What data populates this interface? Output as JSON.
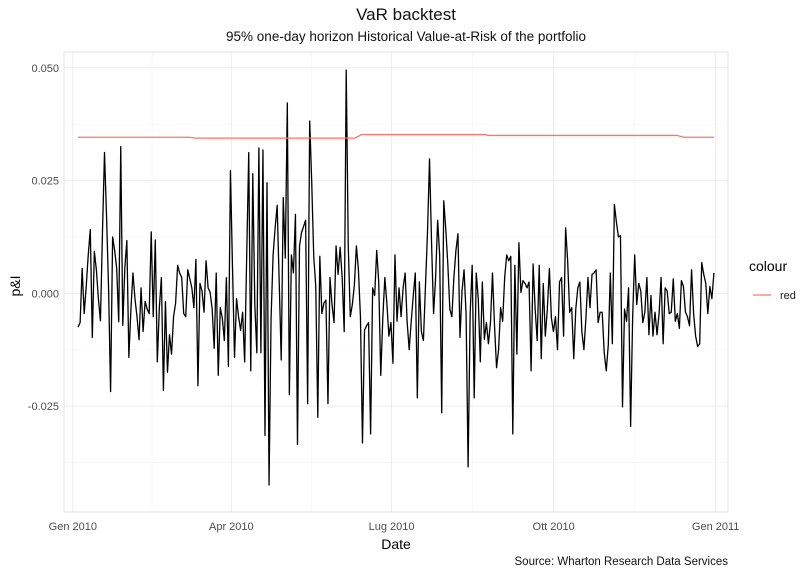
{
  "chart_data": {
    "type": "line",
    "title": "VaR backtest",
    "subtitle": "95% one-day horizon Historical Value-at-Risk of the portfolio",
    "caption": "Source: Wharton Research Data Services",
    "xlabel": "Date",
    "ylabel": "p&I",
    "x_ticks": [
      {
        "date": "2010-01-01",
        "label": "Gen 2010"
      },
      {
        "date": "2010-04-01",
        "label": "Apr 2010"
      },
      {
        "date": "2010-07-01",
        "label": "Lug 2010"
      },
      {
        "date": "2010-10-01",
        "label": "Ott 2010"
      },
      {
        "date": "2011-01-01",
        "label": "Gen 2011"
      }
    ],
    "y_ticks": [
      {
        "value": 0.05,
        "label": "0.050"
      },
      {
        "value": 0.025,
        "label": "0.025"
      },
      {
        "value": 0.0,
        "label": "0.000"
      },
      {
        "value": -0.025,
        "label": "-0.025"
      }
    ],
    "xlim": [
      "2009-12-27",
      "2011-01-08"
    ],
    "ylim": [
      -0.0485,
      0.0535
    ],
    "grid": true,
    "legend": {
      "title": "colour",
      "position": "right",
      "entries": [
        {
          "label": "red",
          "color": "#f8766d"
        }
      ]
    },
    "series": [
      {
        "name": "red",
        "color": "#f8766d",
        "points": [
          {
            "x": "2010-01-04",
            "y": 0.0346
          },
          {
            "x": "2010-03-08",
            "y": 0.0346
          },
          {
            "x": "2010-03-12",
            "y": 0.0344
          },
          {
            "x": "2010-06-10",
            "y": 0.0344
          },
          {
            "x": "2010-06-14",
            "y": 0.0352
          },
          {
            "x": "2010-08-23",
            "y": 0.0352
          },
          {
            "x": "2010-08-25",
            "y": 0.035
          },
          {
            "x": "2010-12-10",
            "y": 0.035
          },
          {
            "x": "2010-12-14",
            "y": 0.0346
          },
          {
            "x": "2010-12-31",
            "y": 0.0346
          }
        ]
      },
      {
        "color": "#000000",
        "x_start": "2010-01-04",
        "x_end": "2010-12-31",
        "y": [
          -0.0075,
          -0.0065,
          0.0055,
          -0.0045,
          0.0015,
          0.0085,
          0.0141,
          -0.0098,
          0.0093,
          0.0052,
          -0.0012,
          -0.0061,
          0.0135,
          0.0312,
          0.0172,
          0.0012,
          -0.0218,
          0.0125,
          0.0095,
          0.0055,
          -0.0063,
          0.0325,
          -0.0071,
          0.0055,
          0.0117,
          -0.0142,
          -0.0035,
          0.0045,
          -0.0012,
          -0.0052,
          -0.0103,
          0.0012,
          -0.0085,
          -0.0018,
          -0.0035,
          -0.0045,
          0.0136,
          -0.0052,
          0.0118,
          -0.0152,
          -0.0032,
          0.0035,
          -0.0215,
          -0.0018,
          -0.0175,
          -0.0092,
          -0.0135,
          -0.0052,
          -0.0022,
          0.0062,
          0.0045,
          0.0035,
          -0.0045,
          -0.0052,
          0.0052,
          0.0032,
          0.0012,
          -0.0032,
          0.0075,
          -0.0205,
          0.0022,
          0.0005,
          -0.0042,
          0.0072,
          0.0012,
          0.0002,
          -0.0035,
          -0.0122,
          0.0045,
          -0.0182,
          -0.0032,
          -0.0055,
          -0.0105,
          0.0035,
          -0.0162,
          0.0272,
          0.0062,
          -0.0142,
          -0.0012,
          -0.0052,
          -0.0082,
          -0.0042,
          -0.0152,
          0.0082,
          0.0312,
          -0.0172,
          0.0265,
          -0.0025,
          -0.0132,
          0.0322,
          -0.0132,
          0.0318,
          -0.0315,
          0.0245,
          -0.0425,
          -0.0055,
          0.0085,
          0.0145,
          0.0195,
          0.0025,
          -0.0148,
          0.0212,
          0.0078,
          0.0422,
          -0.0225,
          0.0085,
          0.0045,
          0.0175,
          -0.0335,
          0.0105,
          0.0135,
          0.0148,
          0.0162,
          -0.0245,
          0.0382,
          0.0248,
          0.0082,
          0.0015,
          -0.0275,
          0.0082,
          -0.0045,
          -0.0022,
          -0.0015,
          -0.0245,
          0.0035,
          -0.0025,
          -0.0065,
          0.0105,
          0.0042,
          0.0102,
          0.0035,
          -0.0085,
          0.0495,
          0.0105,
          -0.0052,
          -0.0025,
          0.0018,
          0.0105,
          0.0052,
          -0.0052,
          -0.0332,
          -0.0082,
          -0.0072,
          -0.0065,
          -0.0312,
          0.0012,
          -0.0005,
          0.0095,
          0.0025,
          -0.0182,
          -0.0055,
          0.0035,
          -0.0022,
          -0.0095,
          -0.0065,
          -0.0155,
          0.0085,
          -0.0062,
          0.0012,
          -0.0052,
          0.0012,
          0.0045,
          -0.0065,
          -0.0125,
          -0.0062,
          -0.0005,
          0.0045,
          -0.0232,
          0.0025,
          -0.0085,
          -0.0105,
          0.0015,
          0.0135,
          0.0298,
          0.0112,
          -0.0045,
          0.0035,
          0.0162,
          0.0085,
          -0.0265,
          0.0205,
          0.0142,
          0.0065,
          -0.0035,
          -0.0052,
          0.0035,
          0.0095,
          0.0132,
          -0.0098,
          0.0005,
          0.0052,
          -0.0045,
          -0.0385,
          -0.0045,
          0.0062,
          -0.0232,
          0.0045,
          -0.0012,
          -0.0152,
          0.0025,
          -0.0102,
          -0.0065,
          -0.0112,
          -0.0065,
          0.0045,
          -0.0072,
          -0.0165,
          -0.0125,
          -0.0032,
          -0.0062,
          0.0035,
          0.0085,
          0.0072,
          0.0082,
          -0.0312,
          0.0062,
          -0.0135,
          0.0112,
          0.0002,
          0.0028,
          0.0022,
          0.0012,
          0.0025,
          -0.0172,
          0.0065,
          -0.0035,
          -0.0105,
          0.0062,
          -0.0145,
          0.0022,
          -0.0095,
          -0.0035,
          0.0055,
          -0.0055,
          -0.0085,
          -0.0052,
          -0.0125,
          0.0025,
          0.0035,
          -0.0095,
          0.0145,
          0.0072,
          -0.0042,
          -0.0032,
          -0.0145,
          -0.0035,
          0.0012,
          0.0025,
          -0.0085,
          -0.0125,
          -0.0055,
          0.0035,
          -0.0032,
          0.0042,
          0.0045,
          0.0052,
          -0.0065,
          -0.0042,
          -0.0042,
          -0.0132,
          -0.0172,
          -0.0115,
          0.0045,
          -0.0112,
          0.0197,
          0.0158,
          0.0125,
          0.0128,
          -0.0252,
          -0.0035,
          -0.0062,
          0.0012,
          -0.0295,
          -0.0052,
          0.0085,
          -0.0025,
          0.0022,
          0.0005,
          -0.0065,
          -0.0042,
          0.0035,
          -0.0092,
          -0.0005,
          -0.0095,
          -0.0042,
          -0.0092,
          -0.0045,
          0.0035,
          -0.0112,
          0.0012,
          0.0005,
          -0.0045,
          -0.0042,
          0.0032,
          -0.0062,
          -0.0045,
          -0.0078,
          0.0028,
          0.0015,
          -0.0042,
          -0.0052,
          -0.0072,
          0.0052,
          -0.0045,
          -0.0095,
          -0.0118,
          -0.0112,
          0.0068,
          0.0042,
          0.0022,
          -0.0045,
          0.0015,
          -0.0012,
          0.0045
        ]
      }
    ]
  }
}
